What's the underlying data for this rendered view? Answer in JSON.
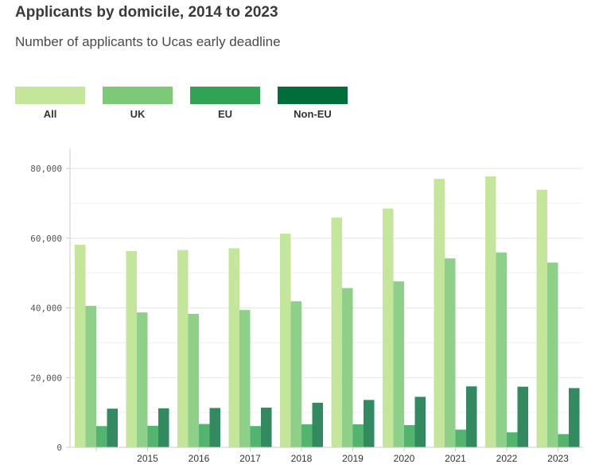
{
  "title": "Applicants by domicile, 2014 to 2023",
  "subtitle": "Number of applicants to Ucas early deadline",
  "legend": [
    {
      "label": "All",
      "color": "#c3e69a"
    },
    {
      "label": "UK",
      "color": "#7ec87a"
    },
    {
      "label": "EU",
      "color": "#31a354"
    },
    {
      "label": "Non-EU",
      "color": "#006d3a"
    }
  ],
  "chart_data": {
    "type": "bar",
    "title": "Applicants by domicile, 2014 to 2023",
    "subtitle": "Number of applicants to Ucas early deadline",
    "categories": [
      "",
      "2015",
      "2016",
      "2017",
      "2018",
      "2019",
      "2020",
      "2021",
      "2022",
      "2023"
    ],
    "series": [
      {
        "name": "All",
        "color": "#c3e69a",
        "values": [
          58100,
          56300,
          56600,
          57100,
          61300,
          65900,
          68500,
          77000,
          77700,
          73900
        ]
      },
      {
        "name": "UK",
        "color": "#8ed08a",
        "values": [
          40600,
          38700,
          38300,
          39400,
          41900,
          45700,
          47600,
          54200,
          55900,
          53000
        ]
      },
      {
        "name": "EU",
        "color": "#52b46f",
        "values": [
          6100,
          6200,
          6700,
          6100,
          6600,
          6600,
          6400,
          5100,
          4300,
          3800
        ]
      },
      {
        "name": "Non-EU",
        "color": "#338a60",
        "values": [
          11100,
          11200,
          11300,
          11400,
          12800,
          13600,
          14500,
          17500,
          17400,
          17000
        ]
      }
    ],
    "yticks": [
      "0",
      "20,000",
      "40,000",
      "60,000",
      "80,000"
    ],
    "ylim": [
      0,
      80000
    ],
    "grid": true,
    "legend_position": "top"
  }
}
